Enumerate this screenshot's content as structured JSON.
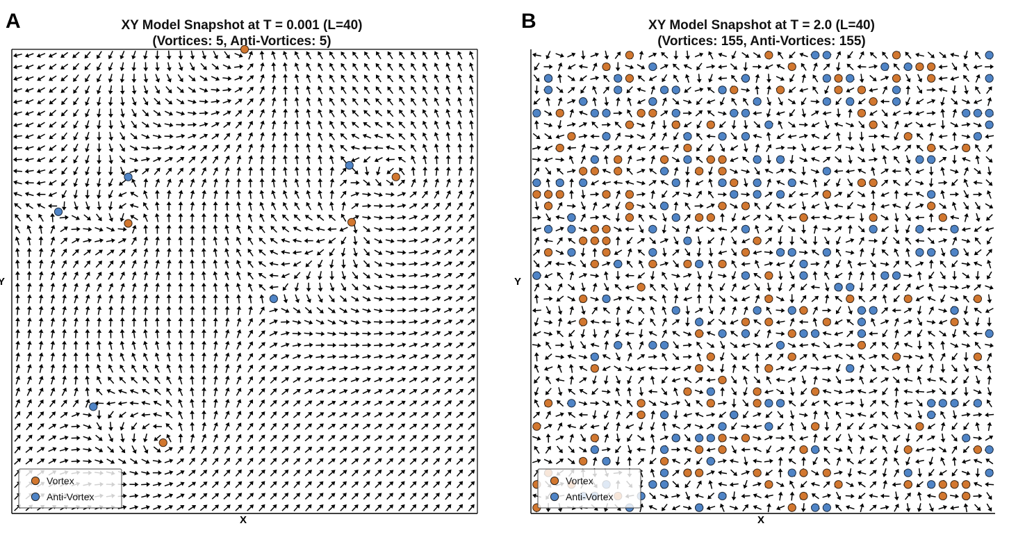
{
  "colors": {
    "vortex": "#d2772f",
    "anti_vortex": "#4f84c6",
    "arrow": "#000000"
  },
  "chart_data": [
    {
      "panel": "A",
      "type": "scatter",
      "title_line1": "XY Model Snapshot at T = 0.001 (L=40)",
      "title_line2": "(Vortices: 5, Anti-Vortices: 5)",
      "xlabel": "X",
      "ylabel": "Y",
      "L": 40,
      "temperature": 0.001,
      "xlim": [
        0,
        40
      ],
      "ylim": [
        0,
        40
      ],
      "legend": {
        "position": "bottom-left",
        "entries": [
          "Vortex",
          "Anti-Vortex"
        ]
      },
      "vortices": [
        [
          20,
          40
        ],
        [
          33,
          29
        ],
        [
          10,
          25
        ],
        [
          29.2,
          25.1
        ],
        [
          13,
          6.1
        ]
      ],
      "anti_vortices": [
        [
          29,
          30
        ],
        [
          10,
          29
        ],
        [
          4,
          26
        ],
        [
          22.5,
          18.5
        ],
        [
          7,
          9.2
        ]
      ]
    },
    {
      "panel": "B",
      "type": "scatter",
      "title_line1": "XY Model Snapshot at T = 2.0 (L=40)",
      "title_line2": "(Vortices: 155, Anti-Vortices: 155)",
      "xlabel": "X",
      "ylabel": "Y",
      "L": 40,
      "temperature": 2.0,
      "xlim": [
        0,
        40
      ],
      "ylim": [
        0,
        40
      ],
      "legend": {
        "position": "bottom-left",
        "entries": [
          "Vortex",
          "Anti-Vortex"
        ]
      }
    }
  ]
}
